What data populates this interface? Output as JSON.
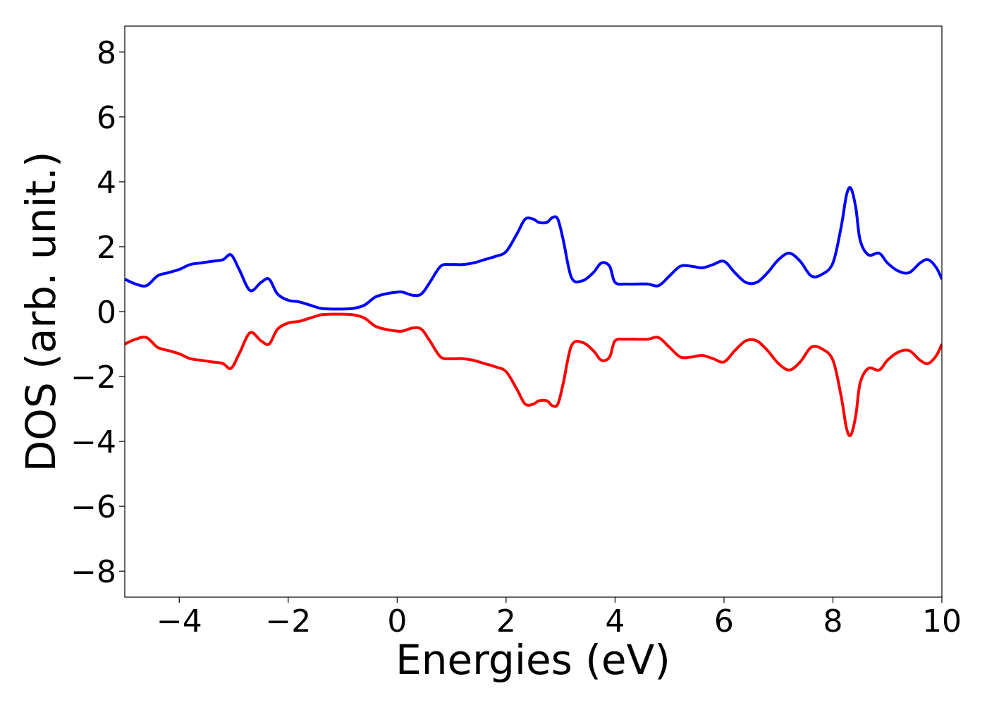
{
  "chart_data": {
    "type": "line",
    "title": "",
    "xlabel": "Energies (eV)",
    "ylabel": "DOS (arb. unit.)",
    "xlim": [
      -5,
      10
    ],
    "ylim": [
      -8.8,
      8.8
    ],
    "grid": false,
    "legend": "none",
    "xticks": [
      -4,
      -2,
      0,
      2,
      4,
      6,
      8,
      10
    ],
    "yticks": [
      -8,
      -6,
      -4,
      -2,
      0,
      2,
      4,
      6,
      8
    ],
    "xtick_labels": [
      "−4",
      "−2",
      "0",
      "2",
      "4",
      "6",
      "8",
      "10"
    ],
    "ytick_labels": [
      "−8",
      "−6",
      "−4",
      "−2",
      "0",
      "2",
      "4",
      "6",
      "8"
    ],
    "series": [
      {
        "color": "#0000ff",
        "x": [
          -5.0,
          -4.8,
          -4.6,
          -4.4,
          -4.2,
          -4.0,
          -3.8,
          -3.6,
          -3.4,
          -3.2,
          -3.05,
          -2.9,
          -2.7,
          -2.5,
          -2.35,
          -2.2,
          -2.0,
          -1.8,
          -1.6,
          -1.4,
          -1.2,
          -1.0,
          -0.8,
          -0.6,
          -0.4,
          -0.2,
          0.0,
          0.1,
          0.3,
          0.45,
          0.6,
          0.8,
          1.0,
          1.2,
          1.4,
          1.6,
          1.8,
          2.0,
          2.2,
          2.35,
          2.5,
          2.6,
          2.75,
          2.85,
          2.95,
          3.05,
          3.2,
          3.4,
          3.6,
          3.75,
          3.9,
          4.0,
          4.2,
          4.4,
          4.6,
          4.8,
          5.0,
          5.2,
          5.4,
          5.6,
          5.8,
          6.0,
          6.2,
          6.4,
          6.6,
          6.8,
          7.0,
          7.2,
          7.4,
          7.6,
          7.8,
          8.0,
          8.15,
          8.25,
          8.33,
          8.42,
          8.5,
          8.65,
          8.85,
          9.0,
          9.2,
          9.4,
          9.6,
          9.75,
          9.9,
          10.0
        ],
        "values": [
          1.0,
          0.85,
          0.8,
          1.1,
          1.2,
          1.3,
          1.45,
          1.5,
          1.55,
          1.6,
          1.75,
          1.3,
          0.65,
          0.9,
          1.0,
          0.55,
          0.35,
          0.3,
          0.2,
          0.1,
          0.08,
          0.08,
          0.1,
          0.2,
          0.45,
          0.55,
          0.6,
          0.6,
          0.5,
          0.55,
          0.9,
          1.4,
          1.45,
          1.45,
          1.5,
          1.6,
          1.7,
          1.85,
          2.4,
          2.85,
          2.85,
          2.75,
          2.75,
          2.9,
          2.85,
          2.2,
          1.05,
          0.95,
          1.2,
          1.5,
          1.4,
          0.9,
          0.85,
          0.85,
          0.85,
          0.8,
          1.1,
          1.4,
          1.4,
          1.35,
          1.45,
          1.55,
          1.2,
          0.9,
          0.9,
          1.2,
          1.6,
          1.8,
          1.55,
          1.1,
          1.15,
          1.5,
          2.6,
          3.6,
          3.8,
          3.2,
          2.2,
          1.75,
          1.8,
          1.5,
          1.25,
          1.2,
          1.5,
          1.6,
          1.35,
          1.0
        ]
      },
      {
        "color": "#ff0000",
        "x": [
          -5.0,
          -4.8,
          -4.6,
          -4.4,
          -4.2,
          -4.0,
          -3.8,
          -3.6,
          -3.4,
          -3.2,
          -3.05,
          -2.9,
          -2.7,
          -2.5,
          -2.35,
          -2.2,
          -2.0,
          -1.8,
          -1.6,
          -1.4,
          -1.2,
          -1.0,
          -0.8,
          -0.6,
          -0.4,
          -0.2,
          0.0,
          0.1,
          0.3,
          0.45,
          0.6,
          0.8,
          1.0,
          1.2,
          1.4,
          1.6,
          1.8,
          2.0,
          2.2,
          2.35,
          2.5,
          2.6,
          2.75,
          2.85,
          2.95,
          3.05,
          3.2,
          3.4,
          3.6,
          3.75,
          3.9,
          4.0,
          4.2,
          4.4,
          4.6,
          4.8,
          5.0,
          5.2,
          5.4,
          5.6,
          5.8,
          6.0,
          6.2,
          6.4,
          6.6,
          6.8,
          7.0,
          7.2,
          7.4,
          7.6,
          7.8,
          8.0,
          8.15,
          8.25,
          8.33,
          8.42,
          8.5,
          8.65,
          8.85,
          9.0,
          9.2,
          9.4,
          9.6,
          9.75,
          9.9,
          10.0
        ],
        "values": [
          -1.0,
          -0.85,
          -0.8,
          -1.1,
          -1.2,
          -1.3,
          -1.45,
          -1.5,
          -1.55,
          -1.6,
          -1.75,
          -1.3,
          -0.65,
          -0.9,
          -1.0,
          -0.55,
          -0.35,
          -0.3,
          -0.2,
          -0.1,
          -0.08,
          -0.08,
          -0.1,
          -0.2,
          -0.45,
          -0.55,
          -0.6,
          -0.6,
          -0.5,
          -0.55,
          -0.9,
          -1.4,
          -1.45,
          -1.45,
          -1.5,
          -1.6,
          -1.7,
          -1.85,
          -2.4,
          -2.85,
          -2.85,
          -2.75,
          -2.75,
          -2.9,
          -2.85,
          -2.2,
          -1.05,
          -0.95,
          -1.2,
          -1.5,
          -1.4,
          -0.9,
          -0.85,
          -0.85,
          -0.85,
          -0.8,
          -1.1,
          -1.4,
          -1.4,
          -1.35,
          -1.45,
          -1.55,
          -1.2,
          -0.9,
          -0.9,
          -1.2,
          -1.6,
          -1.8,
          -1.55,
          -1.1,
          -1.15,
          -1.5,
          -2.6,
          -3.6,
          -3.8,
          -3.2,
          -2.2,
          -1.75,
          -1.8,
          -1.5,
          -1.25,
          -1.2,
          -1.5,
          -1.6,
          -1.35,
          -1.0
        ]
      }
    ]
  }
}
